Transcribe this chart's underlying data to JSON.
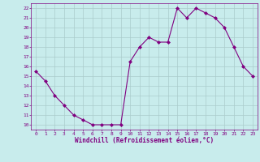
{
  "x": [
    0,
    1,
    2,
    3,
    4,
    5,
    6,
    7,
    8,
    9,
    10,
    11,
    12,
    13,
    14,
    15,
    16,
    17,
    18,
    19,
    20,
    21,
    22,
    23
  ],
  "y": [
    15.5,
    14.5,
    13.0,
    12.0,
    11.0,
    10.5,
    10.0,
    10.0,
    10.0,
    10.0,
    16.5,
    18.0,
    19.0,
    18.5,
    18.5,
    22.0,
    21.0,
    22.0,
    21.5,
    21.0,
    20.0,
    18.0,
    16.0,
    15.0
  ],
  "line_color": "#800080",
  "marker": "D",
  "marker_size": 2,
  "bg_color": "#c8ecec",
  "grid_color": "#aacccc",
  "xlabel": "Windchill (Refroidissement éolien,°C)",
  "xlabel_color": "#800080",
  "tick_color": "#800080",
  "spine_color": "#800080",
  "ylim": [
    9.5,
    22.5
  ],
  "xlim": [
    -0.5,
    23.5
  ],
  "yticks": [
    10,
    11,
    12,
    13,
    14,
    15,
    16,
    17,
    18,
    19,
    20,
    21,
    22
  ],
  "xticks": [
    0,
    1,
    2,
    3,
    4,
    5,
    6,
    7,
    8,
    9,
    10,
    11,
    12,
    13,
    14,
    15,
    16,
    17,
    18,
    19,
    20,
    21,
    22,
    23
  ]
}
